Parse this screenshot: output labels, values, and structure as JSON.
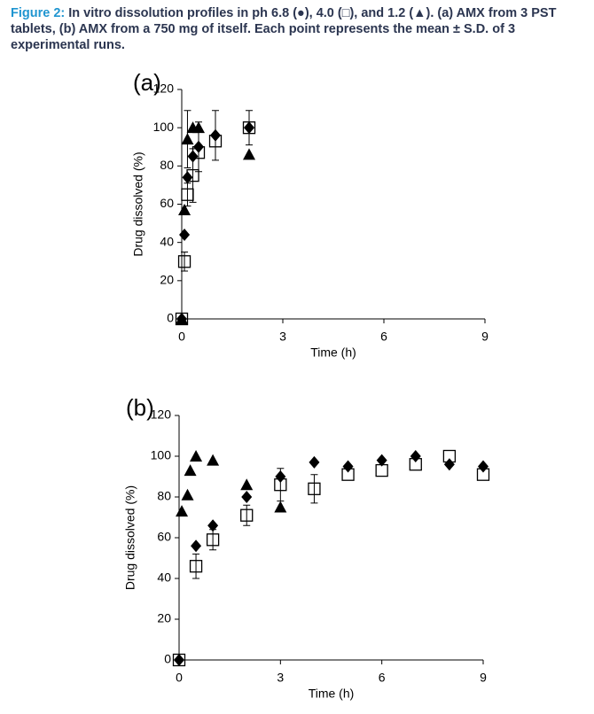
{
  "caption": {
    "label": "Figure 2:",
    "text": "In vitro dissolution profiles in ph 6.8 (●), 4.0 (□), and 1.2 (▲). (a) AMX from 3 PST tablets, (b) AMX from a 750 mg of itself. Each point represents the mean ± S.D. of 3 experimental runs."
  },
  "chart_data": [
    {
      "type": "scatter",
      "panel_label": "(a)",
      "xlabel": "Time (h)",
      "ylabel": "Drug dissolved (%)",
      "xlim": [
        0,
        9
      ],
      "ylim": [
        0,
        120
      ],
      "xticks": [
        0,
        3,
        6,
        9
      ],
      "yticks": [
        0,
        20,
        40,
        60,
        80,
        100,
        120
      ],
      "series": [
        {
          "marker": "diamond",
          "color": "#000000",
          "x": [
            0,
            0.08,
            0.17,
            0.33,
            0.5,
            1,
            2
          ],
          "values": [
            0,
            44,
            74,
            85,
            90,
            96,
            100
          ],
          "errors": [
            null,
            null,
            null,
            null,
            13,
            13,
            9
          ]
        },
        {
          "marker": "square",
          "color": "#000000",
          "x": [
            0,
            0.08,
            0.17,
            0.33,
            0.5,
            1,
            2
          ],
          "values": [
            0,
            30,
            65,
            75,
            87,
            93,
            100
          ],
          "errors": [
            null,
            5,
            6,
            14,
            null,
            null,
            null
          ]
        },
        {
          "marker": "triangle",
          "color": "#000000",
          "x": [
            0,
            0.08,
            0.17,
            0.33,
            0.5,
            2
          ],
          "values": [
            0,
            57,
            94,
            100,
            100,
            86
          ],
          "errors": [
            null,
            null,
            15,
            null,
            null,
            null
          ]
        }
      ]
    },
    {
      "type": "scatter",
      "panel_label": "(b)",
      "xlabel": "Time (h)",
      "ylabel": "Drug dissolved (%)",
      "xlim": [
        0,
        9
      ],
      "ylim": [
        0,
        120
      ],
      "xticks": [
        0,
        3,
        6,
        9
      ],
      "yticks": [
        0,
        20,
        40,
        60,
        80,
        100,
        120
      ],
      "series": [
        {
          "marker": "diamond",
          "color": "#000000",
          "x": [
            0,
            0.5,
            1,
            2,
            3,
            4,
            5,
            6,
            7,
            8,
            9
          ],
          "values": [
            0,
            56,
            66,
            80,
            90,
            97,
            95,
            98,
            100,
            96,
            95
          ],
          "errors": [
            null,
            null,
            null,
            null,
            null,
            null,
            null,
            null,
            null,
            null,
            null
          ]
        },
        {
          "marker": "square",
          "color": "#000000",
          "x": [
            0,
            0.5,
            1,
            2,
            3,
            4,
            5,
            6,
            7,
            8,
            9
          ],
          "values": [
            0,
            46,
            59,
            71,
            86,
            84,
            91,
            93,
            96,
            100,
            91
          ],
          "errors": [
            null,
            6,
            5,
            5,
            8,
            7,
            null,
            null,
            null,
            null,
            null
          ]
        },
        {
          "marker": "triangle",
          "color": "#000000",
          "x": [
            0.08,
            0.25,
            0.33,
            0.5,
            1,
            2,
            3
          ],
          "values": [
            73,
            81,
            93,
            100,
            98,
            86,
            75
          ],
          "errors": [
            null,
            null,
            null,
            null,
            null,
            null,
            null
          ]
        }
      ]
    }
  ]
}
